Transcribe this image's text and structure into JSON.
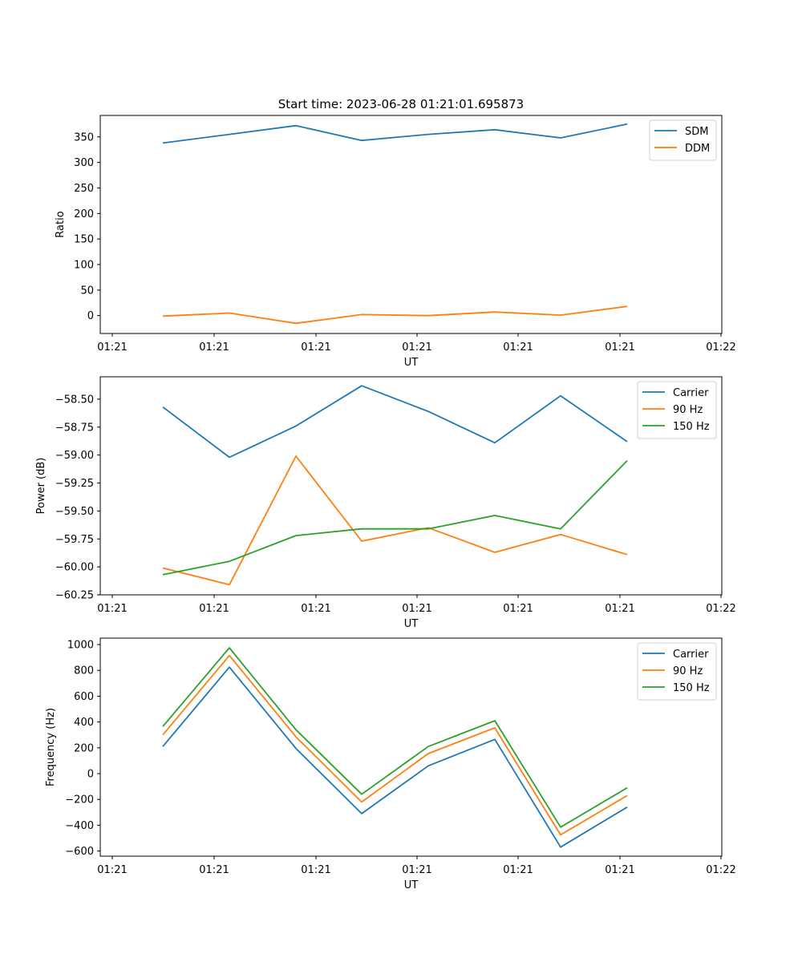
{
  "title": "Start time: 2023-06-28 01:21:01.695873",
  "chart_data": [
    {
      "type": "line",
      "xlabel": "UT",
      "ylabel": "Ratio",
      "x_tick_labels": [
        "01:21",
        "01:21",
        "01:21",
        "01:21",
        "01:21",
        "01:21",
        "01:22"
      ],
      "ylim": [
        -35,
        392
      ],
      "y_ticks": [
        0,
        50,
        100,
        150,
        200,
        250,
        300,
        350
      ],
      "y_tick_labels": [
        "0",
        "50",
        "100",
        "150",
        "200",
        "250",
        "300",
        "350"
      ],
      "legend_position": "top-right",
      "series": [
        {
          "name": "SDM",
          "color": "#1f77b4",
          "values": [
            338,
            355,
            372,
            343,
            355,
            364,
            348,
            375
          ]
        },
        {
          "name": "DDM",
          "color": "#ff7f0e",
          "values": [
            -1,
            5,
            -15,
            2,
            0,
            7,
            1,
            18
          ]
        }
      ]
    },
    {
      "type": "line",
      "xlabel": "UT",
      "ylabel": "Power (dB)",
      "x_tick_labels": [
        "01:21",
        "01:21",
        "01:21",
        "01:21",
        "01:21",
        "01:21",
        "01:22"
      ],
      "ylim": [
        -60.25,
        -58.3
      ],
      "y_ticks": [
        -60.25,
        -60.0,
        -59.75,
        -59.5,
        -59.25,
        -59.0,
        -58.75,
        -58.5
      ],
      "y_tick_labels": [
        "−60.25",
        "−60.00",
        "−59.75",
        "−59.50",
        "−59.25",
        "−59.00",
        "−58.75",
        "−58.50"
      ],
      "legend_position": "top-right",
      "series": [
        {
          "name": "Carrier",
          "color": "#1f77b4",
          "values": [
            -58.57,
            -59.02,
            -58.74,
            -58.38,
            -58.61,
            -58.89,
            -58.47,
            -58.88
          ]
        },
        {
          "name": "90 Hz",
          "color": "#ff7f0e",
          "values": [
            -60.01,
            -60.16,
            -59.01,
            -59.77,
            -59.65,
            -59.87,
            -59.71,
            -59.89
          ]
        },
        {
          "name": "150 Hz",
          "color": "#2ca02c",
          "values": [
            -60.07,
            -59.95,
            -59.72,
            -59.66,
            -59.66,
            -59.54,
            -59.66,
            -59.05
          ]
        }
      ]
    },
    {
      "type": "line",
      "xlabel": "UT",
      "ylabel": "Frequency (Hz)",
      "x_tick_labels": [
        "01:21",
        "01:21",
        "01:21",
        "01:21",
        "01:21",
        "01:21",
        "01:22"
      ],
      "ylim": [
        -640,
        1050
      ],
      "y_ticks": [
        -600,
        -400,
        -200,
        0,
        200,
        400,
        600,
        800,
        1000
      ],
      "y_tick_labels": [
        "−600",
        "−400",
        "−200",
        "0",
        "200",
        "400",
        "600",
        "800",
        "1000"
      ],
      "legend_position": "top-right",
      "series": [
        {
          "name": "Carrier",
          "color": "#1f77b4",
          "values": [
            210,
            825,
            195,
            -310,
            60,
            265,
            -570,
            -260
          ]
        },
        {
          "name": "90 Hz",
          "color": "#ff7f0e",
          "values": [
            300,
            915,
            285,
            -220,
            155,
            355,
            -475,
            -170
          ]
        },
        {
          "name": "150 Hz",
          "color": "#2ca02c",
          "values": [
            365,
            975,
            340,
            -160,
            210,
            410,
            -415,
            -110
          ]
        }
      ]
    }
  ]
}
